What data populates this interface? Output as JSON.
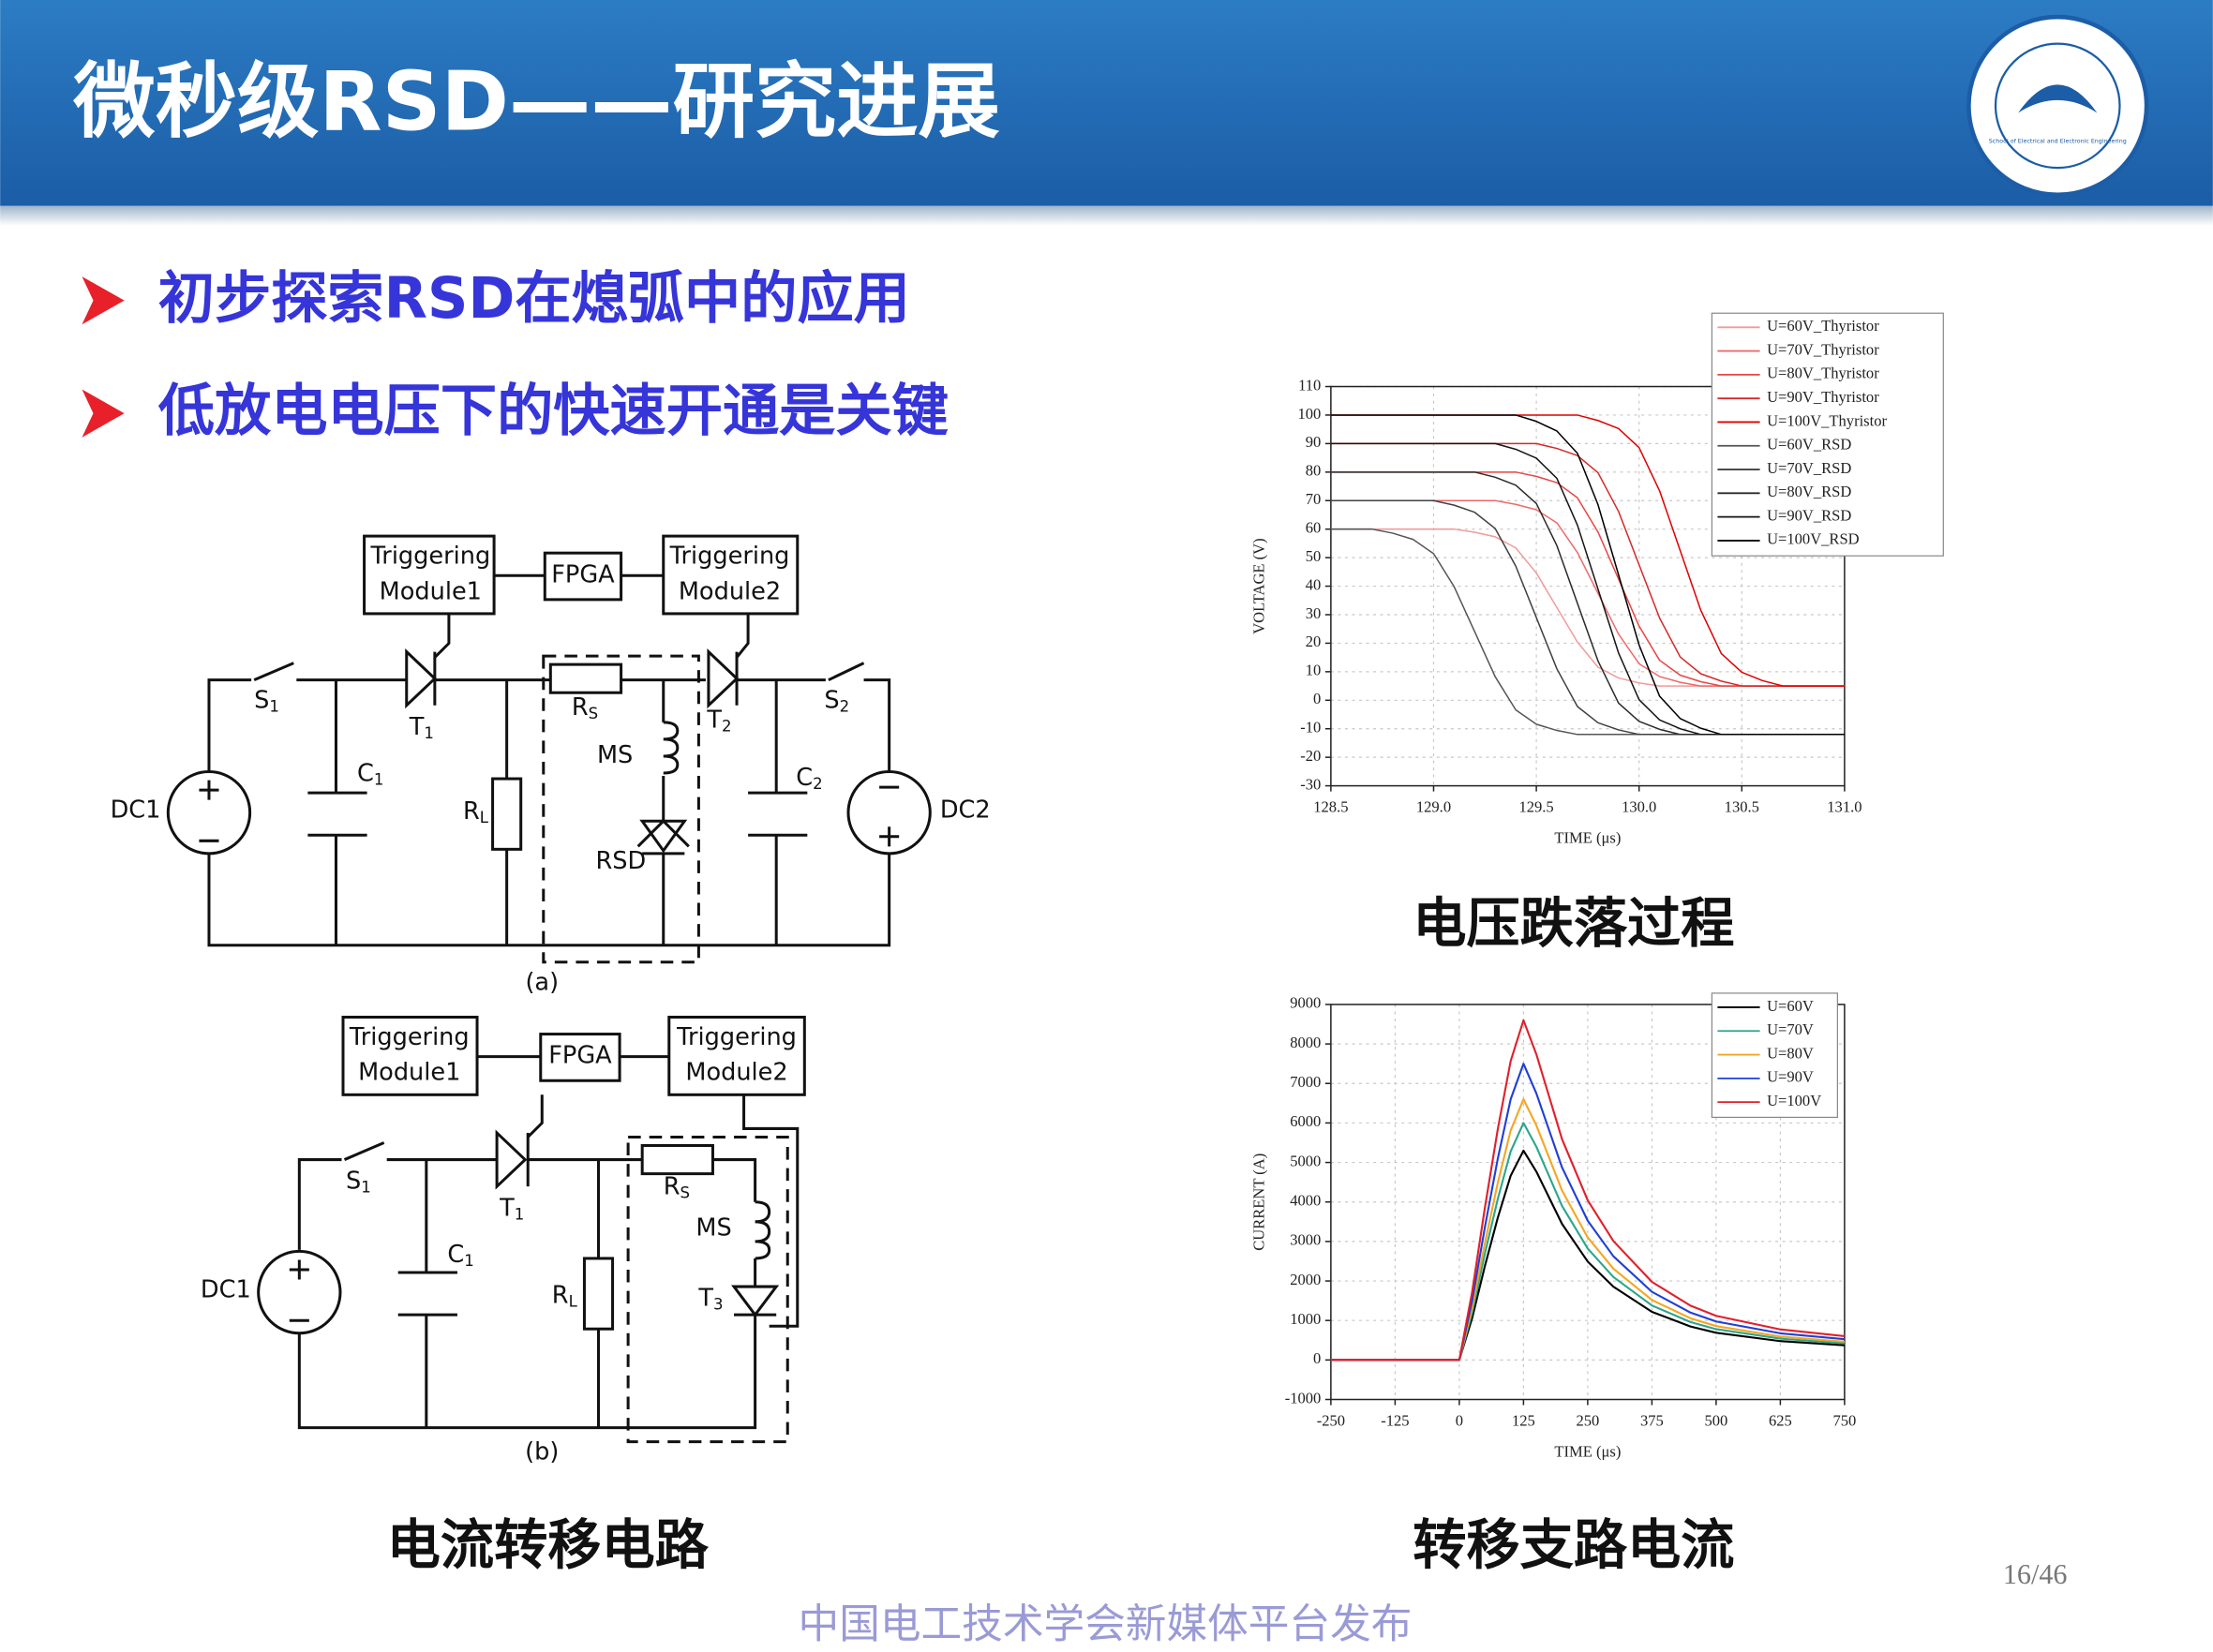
{
  "header": {
    "title": "微秒级RSD——研究进展",
    "logo_text": "School of Electrical and Electronic Engineering"
  },
  "bullets": [
    "初步探索RSD在熄弧中的应用",
    "低放电电压下的快速开通是关键"
  ],
  "circuit_a": {
    "label": "(a)",
    "boxes": [
      [
        "Triggering",
        "Module1"
      ],
      [
        "FPGA"
      ],
      [
        "Triggering",
        "Module2"
      ]
    ],
    "components": [
      {
        "text": "S",
        "sub": "1"
      },
      {
        "text": "T",
        "sub": "1"
      },
      {
        "text": "R",
        "sub": "S"
      },
      {
        "text": "T",
        "sub": "2"
      },
      {
        "text": "S",
        "sub": "2"
      },
      {
        "text": "C",
        "sub": "1"
      },
      {
        "text": "R",
        "sub": "L"
      },
      {
        "text": "MS"
      },
      {
        "text": "RSD"
      },
      {
        "text": "C",
        "sub": "2"
      },
      {
        "text": "DC1"
      },
      {
        "text": "DC2"
      }
    ]
  },
  "circuit_b": {
    "label": "(b)",
    "boxes": [
      [
        "Triggering",
        "Module1"
      ],
      [
        "FPGA"
      ],
      [
        "Triggering",
        "Module2"
      ]
    ],
    "components": [
      {
        "text": "S",
        "sub": "1"
      },
      {
        "text": "T",
        "sub": "1"
      },
      {
        "text": "C",
        "sub": "1"
      },
      {
        "text": "R",
        "sub": "S"
      },
      {
        "text": "MS"
      },
      {
        "text": "R",
        "sub": "L"
      },
      {
        "text": "T",
        "sub": "3"
      },
      {
        "text": "DC1"
      }
    ]
  },
  "circuit_caption": "电流转移电路",
  "page_number": "16/46",
  "watermark": "中国电工技术学会新媒体平台发布",
  "chart_data": [
    {
      "type": "line",
      "title": "电压跌落过程",
      "x_label": "TIME (μs)",
      "y_label": "VOLTAGE (V)",
      "xlim": [
        128.5,
        131.0
      ],
      "ylim": [
        -30,
        110
      ],
      "xticks": [
        128.5,
        {
          "value": 129,
          "label": "129.0"
        },
        129.5,
        {
          "value": 130,
          "label": "130.0"
        },
        130.5,
        {
          "value": 131,
          "label": "131.0"
        }
      ],
      "yticks": [
        -30,
        -20,
        -10,
        0,
        10,
        20,
        30,
        40,
        50,
        60,
        70,
        80,
        90,
        100,
        110
      ],
      "grid": true,
      "legend": "upper right",
      "x": [
        128.5,
        128.6,
        128.7,
        128.8,
        128.9,
        129,
        129.1,
        129.2,
        129.3,
        129.4,
        129.5,
        129.6,
        129.7,
        129.8,
        129.9,
        130,
        130.1,
        130.2,
        130.3,
        130.4,
        130.5,
        130.6,
        130.7,
        130.8,
        130.9,
        131
      ],
      "series": [
        {
          "name": "U=60V_Thyristor",
          "color": "#f29a9a",
          "values": [
            60,
            60,
            60,
            60,
            60,
            60,
            60,
            58.9,
            57.3,
            53.4,
            44.6,
            32.5,
            20.4,
            11.6,
            7.8,
            6.1,
            5,
            5,
            5,
            5,
            5,
            5,
            5,
            5,
            5,
            5
          ]
        },
        {
          "name": "U=70V_Thyristor",
          "color": "#ee6a6a",
          "values": [
            70,
            70,
            70,
            70,
            70,
            70,
            70,
            70,
            70,
            68.7,
            66.8,
            62.2,
            51.8,
            37.5,
            23.2,
            12.8,
            8.3,
            6.3,
            5,
            5,
            5,
            5,
            5,
            5,
            5,
            5
          ]
        },
        {
          "name": "U=80V_Thyristor",
          "color": "#e84545",
          "values": [
            80,
            80,
            80,
            80,
            80,
            80,
            80,
            80,
            80,
            80,
            78.5,
            76.3,
            71,
            59,
            42.5,
            26,
            14,
            8.8,
            6.5,
            5,
            5,
            5,
            5,
            5,
            5,
            5
          ]
        },
        {
          "name": "U=90V_Thyristor",
          "color": "#d42a2a",
          "values": [
            90,
            90,
            90,
            90,
            90,
            90,
            90,
            90,
            90,
            90,
            90,
            88.3,
            85.8,
            79.8,
            66.2,
            47.5,
            28.8,
            15.2,
            9.3,
            6.7,
            5,
            5,
            5,
            5,
            5,
            5
          ]
        },
        {
          "name": "U=100V_Thyristor",
          "color": "#e00000",
          "values": [
            100,
            100,
            100,
            100,
            100,
            100,
            100,
            100,
            100,
            100,
            100,
            100,
            100,
            98.1,
            95.3,
            88.6,
            73.4,
            52.5,
            31.6,
            16.4,
            9.8,
            6.9,
            5,
            5,
            5,
            5
          ]
        },
        {
          "name": "U=60V_RSD",
          "color": "#555555",
          "values": [
            60,
            60,
            60,
            58.6,
            56.4,
            51.4,
            39.8,
            24,
            8.2,
            -3.4,
            -8.4,
            -10.6,
            -12,
            -12,
            -12,
            -12,
            -12,
            -12,
            -12,
            -12,
            -12,
            -12,
            -12,
            -12,
            -12,
            -12
          ]
        },
        {
          "name": "U=70V_RSD",
          "color": "#404040",
          "values": [
            70,
            70,
            70,
            70,
            70,
            70,
            68.4,
            65.9,
            60.2,
            47,
            29,
            11,
            -2.2,
            -7.9,
            -10.4,
            -12,
            -12,
            -12,
            -12,
            -12,
            -12,
            -12,
            -12,
            -12,
            -12,
            -12
          ]
        },
        {
          "name": "U=80V_RSD",
          "color": "#2a2a2a",
          "values": [
            80,
            80,
            80,
            80,
            80,
            80,
            80,
            80,
            78.2,
            75.4,
            69,
            54.2,
            34,
            13.8,
            -1,
            -7.4,
            -10.2,
            -12,
            -12,
            -12,
            -12,
            -12,
            -12,
            -12,
            -12,
            -12
          ]
        },
        {
          "name": "U=90V_RSD",
          "color": "#151515",
          "values": [
            90,
            90,
            90,
            90,
            90,
            90,
            90,
            90,
            90,
            88,
            84.9,
            77.8,
            61.4,
            39,
            16.6,
            0.2,
            -6.9,
            -10,
            -12,
            -12,
            -12,
            -12,
            -12,
            -12,
            -12,
            -12
          ]
        },
        {
          "name": "U=100V_RSD",
          "color": "#000000",
          "values": [
            100,
            100,
            100,
            100,
            100,
            100,
            100,
            100,
            100,
            100,
            97.8,
            94.4,
            86.6,
            68.6,
            44,
            19.4,
            1.4,
            -6.4,
            -9.8,
            -12,
            -12,
            -12,
            -12,
            -12,
            -12,
            -12
          ]
        }
      ]
    },
    {
      "type": "line",
      "title": "转移支路电流",
      "x_label": "TIME (μs)",
      "y_label": "CURRENT (A)",
      "xlim": [
        -250,
        750
      ],
      "ylim": [
        -1000,
        9000
      ],
      "xticks": [
        -250,
        -125,
        0,
        125,
        250,
        375,
        500,
        625,
        750
      ],
      "yticks": [
        -1000,
        0,
        1000,
        2000,
        3000,
        4000,
        5000,
        6000,
        7000,
        8000,
        9000
      ],
      "grid": true,
      "legend": "upper right",
      "x": [
        -250,
        -125,
        -50,
        0,
        25,
        50,
        75,
        100,
        125,
        150,
        200,
        250,
        300,
        375,
        450,
        500,
        625,
        750
      ],
      "series": [
        {
          "name": "U=60V",
          "color": "#000000",
          "values": [
            0,
            0,
            0,
            0,
            1060,
            2385,
            3604,
            4664,
            5300,
            4770,
            3445,
            2491,
            1855,
            1219,
            848,
            689,
            477,
            371
          ]
        },
        {
          "name": "U=70V",
          "color": "#2ca58d",
          "values": [
            0,
            0,
            0,
            0,
            1200,
            2700,
            4080,
            5280,
            6000,
            5400,
            3900,
            2820,
            2100,
            1380,
            960,
            780,
            540,
            420
          ]
        },
        {
          "name": "U=80V",
          "color": "#f5a623",
          "values": [
            0,
            0,
            0,
            0,
            1320,
            2970,
            4488,
            5808,
            6600,
            5940,
            4290,
            3102,
            2310,
            1518,
            1056,
            858,
            594,
            462
          ]
        },
        {
          "name": "U=90V",
          "color": "#1f3fd6",
          "values": [
            0,
            0,
            0,
            0,
            1500,
            3375,
            5100,
            6600,
            7500,
            6750,
            4875,
            3525,
            2625,
            1725,
            1200,
            975,
            675,
            525
          ]
        },
        {
          "name": "U=100V",
          "color": "#e0202c",
          "values": [
            0,
            0,
            0,
            0,
            1720,
            3870,
            5848,
            7568,
            8600,
            7740,
            5590,
            4042,
            3010,
            1978,
            1376,
            1118,
            774,
            602
          ]
        }
      ]
    }
  ]
}
